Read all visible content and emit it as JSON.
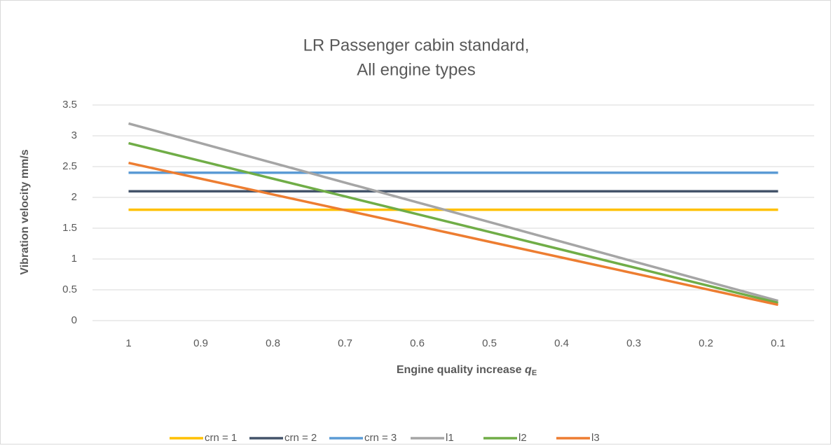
{
  "chart_data": {
    "type": "line",
    "title": [
      "LR Passenger cabin standard,",
      "All engine types"
    ],
    "y_label": "Vibration velocity mm/s",
    "x_label": {
      "text": "Engine quality increase",
      "symbol": "q",
      "subscript": "E"
    },
    "categories": [
      "1",
      "0.9",
      "0.8",
      "0.7",
      "0.6",
      "0.5",
      "0.4",
      "0.3",
      "0.2",
      "0.1"
    ],
    "series": [
      {
        "name": "crn = 1",
        "color": "#FFC000",
        "values": [
          1.8,
          1.8,
          1.8,
          1.8,
          1.8,
          1.8,
          1.8,
          1.8,
          1.8,
          1.8
        ]
      },
      {
        "name": "crn = 2",
        "color": "#44546A",
        "values": [
          2.1,
          2.1,
          2.1,
          2.1,
          2.1,
          2.1,
          2.1,
          2.1,
          2.1,
          2.1
        ]
      },
      {
        "name": "crn = 3",
        "color": "#5B9BD5",
        "values": [
          2.4,
          2.4,
          2.4,
          2.4,
          2.4,
          2.4,
          2.4,
          2.4,
          2.4,
          2.4
        ]
      },
      {
        "name": "l1",
        "color": "#A5A5A5",
        "values": [
          3.2,
          2.88,
          2.56,
          2.24,
          1.92,
          1.6,
          1.28,
          0.96,
          0.64,
          0.32
        ]
      },
      {
        "name": "l2",
        "color": "#70AD47",
        "values": [
          2.88,
          2.592,
          2.304,
          2.016,
          1.728,
          1.44,
          1.152,
          0.864,
          0.576,
          0.288
        ]
      },
      {
        "name": "l3",
        "color": "#ED7D31",
        "values": [
          2.56,
          2.304,
          2.048,
          1.792,
          1.536,
          1.28,
          1.024,
          0.768,
          0.512,
          0.256
        ]
      }
    ],
    "ylim": [
      0,
      3.5
    ],
    "yticks": [
      0,
      0.5,
      1,
      1.5,
      2,
      2.5,
      3,
      3.5
    ],
    "grid": true,
    "legend": "bottom"
  }
}
